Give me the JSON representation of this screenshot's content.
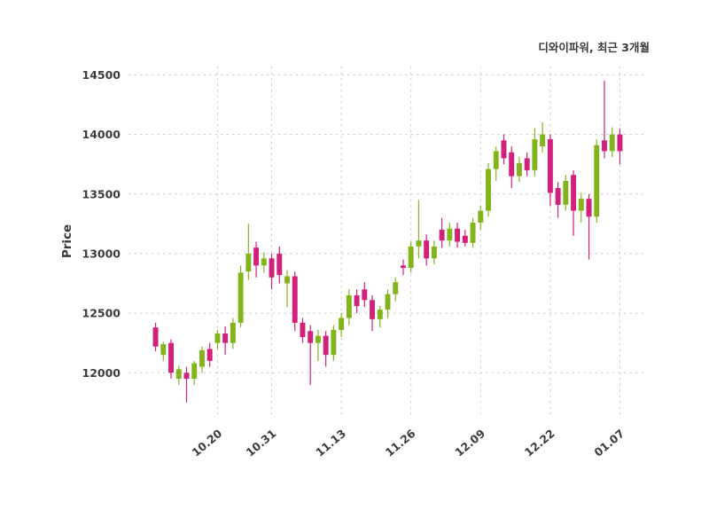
{
  "header": {
    "title": "디와이파워, 최근 3개월"
  },
  "chart_data": {
    "type": "candlestick",
    "title": "디와이파워, 최근 3개월",
    "ylabel": "Price",
    "xlabel": "",
    "grid": true,
    "grid_color": "#cccccc",
    "up_color": "#84b41c",
    "down_color": "#d2217a",
    "text_color": "#3d3d3d",
    "yticks": [
      12000,
      12500,
      13000,
      13500,
      14000,
      14500
    ],
    "ylim": [
      11630,
      14570
    ],
    "xlim": [
      -3.5,
      63.5
    ],
    "xtick_labels": [
      "10.20",
      "10.31",
      "11.13",
      "11.26",
      "12.09",
      "12.22",
      "01.07"
    ],
    "xtick_indices": [
      8,
      15,
      24,
      33,
      42,
      51,
      60
    ],
    "candles_format": [
      "open",
      "high",
      "low",
      "close"
    ],
    "candles": [
      [
        12380,
        12420,
        12180,
        12220
      ],
      [
        12150,
        12260,
        12100,
        12240
      ],
      [
        12250,
        12280,
        11950,
        12000
      ],
      [
        11950,
        12060,
        11900,
        12030
      ],
      [
        12000,
        12050,
        11750,
        11950
      ],
      [
        11950,
        12100,
        11900,
        12080
      ],
      [
        12050,
        12220,
        12000,
        12190
      ],
      [
        12200,
        12250,
        12050,
        12100
      ],
      [
        12250,
        12360,
        12200,
        12330
      ],
      [
        12330,
        12390,
        12150,
        12250
      ],
      [
        12250,
        12460,
        12200,
        12420
      ],
      [
        12420,
        12900,
        12380,
        12840
      ],
      [
        12850,
        13250,
        12780,
        13000
      ],
      [
        13050,
        13100,
        12800,
        12900
      ],
      [
        12900,
        13010,
        12840,
        12960
      ],
      [
        12960,
        13000,
        12700,
        12800
      ],
      [
        13000,
        13060,
        12750,
        12820
      ],
      [
        12750,
        12860,
        12550,
        12810
      ],
      [
        12810,
        12850,
        12350,
        12420
      ],
      [
        12420,
        12460,
        12250,
        12300
      ],
      [
        12350,
        12400,
        11900,
        12250
      ],
      [
        12250,
        12360,
        12100,
        12310
      ],
      [
        12310,
        12350,
        12050,
        12150
      ],
      [
        12150,
        12400,
        12100,
        12360
      ],
      [
        12360,
        12500,
        12300,
        12460
      ],
      [
        12460,
        12700,
        12400,
        12650
      ],
      [
        12650,
        12700,
        12500,
        12560
      ],
      [
        12700,
        12760,
        12550,
        12610
      ],
      [
        12610,
        12650,
        12350,
        12450
      ],
      [
        12450,
        12560,
        12380,
        12530
      ],
      [
        12530,
        12700,
        12460,
        12660
      ],
      [
        12660,
        12800,
        12600,
        12760
      ],
      [
        12900,
        12950,
        12820,
        12880
      ],
      [
        12880,
        13100,
        12840,
        13060
      ],
      [
        13060,
        13450,
        12960,
        13110
      ],
      [
        13110,
        13160,
        12900,
        12960
      ],
      [
        12960,
        13110,
        12910,
        13060
      ],
      [
        13200,
        13300,
        13050,
        13110
      ],
      [
        13110,
        13260,
        13060,
        13210
      ],
      [
        13210,
        13260,
        13050,
        13100
      ],
      [
        13150,
        13200,
        13060,
        13090
      ],
      [
        13090,
        13300,
        13050,
        13260
      ],
      [
        13260,
        13400,
        13200,
        13360
      ],
      [
        13360,
        13760,
        13310,
        13710
      ],
      [
        13710,
        13900,
        13610,
        13860
      ],
      [
        13950,
        14000,
        13750,
        13800
      ],
      [
        13850,
        13900,
        13550,
        13650
      ],
      [
        13650,
        13810,
        13600,
        13760
      ],
      [
        13800,
        13850,
        13650,
        13700
      ],
      [
        13700,
        14050,
        13650,
        13960
      ],
      [
        13900,
        14100,
        13850,
        14000
      ],
      [
        13960,
        14000,
        13400,
        13510
      ],
      [
        13550,
        13600,
        13300,
        13410
      ],
      [
        13410,
        13660,
        13360,
        13610
      ],
      [
        13660,
        13700,
        13150,
        13360
      ],
      [
        13360,
        13510,
        13260,
        13460
      ],
      [
        13460,
        13500,
        12950,
        13310
      ],
      [
        13310,
        13960,
        13260,
        13910
      ],
      [
        13950,
        14450,
        13800,
        13860
      ],
      [
        13860,
        14060,
        13810,
        14000
      ],
      [
        14000,
        14050,
        13750,
        13860
      ]
    ]
  }
}
